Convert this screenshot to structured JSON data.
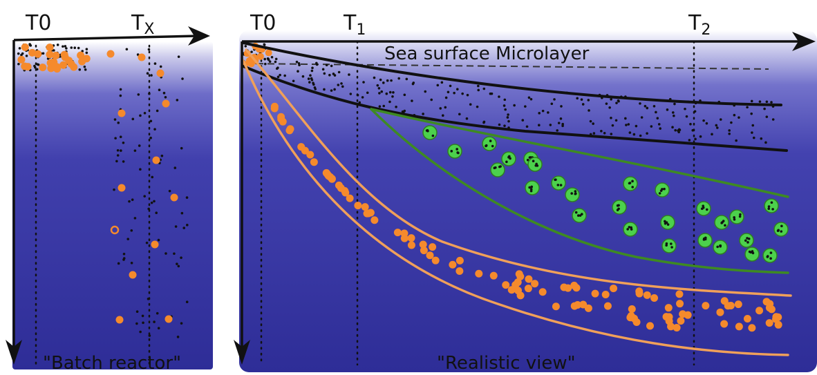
{
  "left_panel": {
    "time_start": {
      "base": "T",
      "sub": "0"
    },
    "time_end": {
      "base": "T",
      "sub": "X"
    },
    "caption": "\"Batch reactor\""
  },
  "right_panel": {
    "time_start": {
      "base": "T",
      "sub": "0"
    },
    "time_1": {
      "base": "T",
      "sub": "1"
    },
    "time_2": {
      "base": "T",
      "sub": "2"
    },
    "microlayer_label": "Sea surface Microlayer",
    "caption": "\"Realistic view\""
  },
  "colors": {
    "water_top": "#ffffff",
    "water_deep": "#2e2d97",
    "particle_orange": "#f58a2c",
    "aggregate_green": "#4cd14c",
    "aggregate_outline": "#2f7d22",
    "ink": "#111111"
  }
}
